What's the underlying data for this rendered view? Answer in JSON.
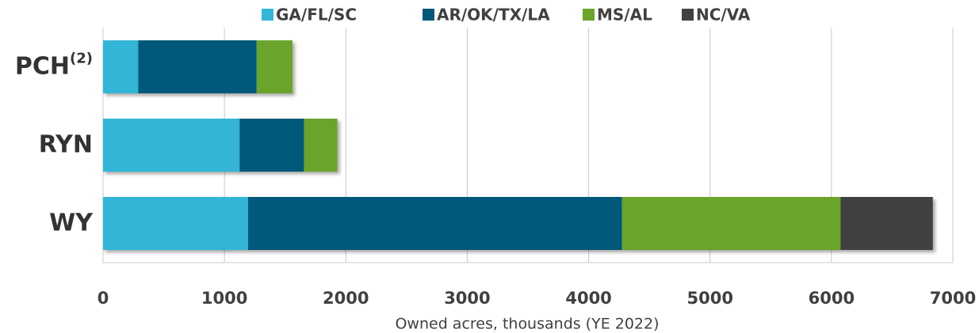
{
  "chart_data": {
    "type": "hbar_stacked",
    "categories": [
      "PCH",
      "RYN",
      "WY"
    ],
    "category_superscripts": [
      "(2)",
      null,
      null
    ],
    "series": [
      {
        "name": "GA/FL/SC",
        "color": "#33b5d6",
        "values": [
          290,
          1125,
          1195
        ]
      },
      {
        "name": "AR/OK/TX/LA",
        "color": "#03587a",
        "values": [
          975,
          530,
          3080
        ]
      },
      {
        "name": "MS/AL",
        "color": "#6aa42a",
        "values": [
          295,
          275,
          1800
        ]
      },
      {
        "name": "NC/VA",
        "color": "#404040",
        "values": [
          null,
          null,
          760
        ]
      }
    ],
    "x_label": "Owned acres, thousands (YE 2022)",
    "xlim": [
      0,
      7000
    ],
    "xticks": [
      0,
      1000,
      2000,
      3000,
      4000,
      5000,
      6000,
      7000
    ],
    "grid": true,
    "legend": "top"
  }
}
